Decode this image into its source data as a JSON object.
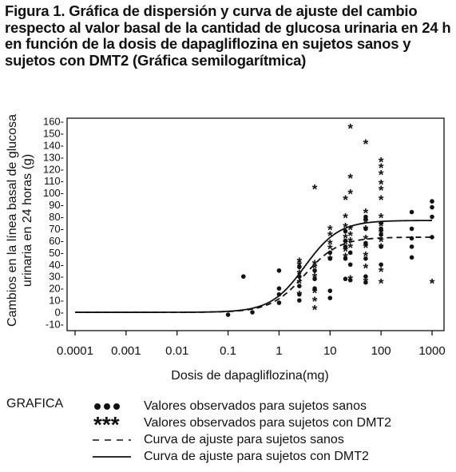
{
  "title": "Figura 1. Gráfica de dispersión y curva de ajuste del cambio respecto al valor basal de la cantidad de glucosa urinaria en 24 h en función de la dosis de dapagliflozina en sujetos sanos y sujetos con DMT2 (Gráfica semilogarítmica)",
  "legend": {
    "title": "GRAFICA",
    "items": [
      {
        "symbol": "●●●",
        "label": "Valores observados para sujetos sanos"
      },
      {
        "symbol": "***",
        "label": "Valores observados para sujetos con DMT2"
      },
      {
        "symbol": "dashed-line",
        "label": "Curva de ajuste para sujetos sanos"
      },
      {
        "symbol": "solid-line",
        "label": "Curva de ajuste para sujetos con DMT2"
      }
    ]
  },
  "chart_data": {
    "type": "scatter",
    "xscale": "log",
    "xlabel": "Dosis de dapagliflozina(mg)",
    "ylabel": "Cambios en la línea basal de glucosa urinaria en 24 horas (g)",
    "xlim": [
      0.0001,
      1000
    ],
    "ylim": [
      -10,
      160
    ],
    "xticks": [
      0.0001,
      0.001,
      0.01,
      0.1,
      1,
      10,
      100,
      1000
    ],
    "xtick_labels": [
      "0.0001",
      "0.001",
      "0.01",
      "0.1",
      "1",
      "10",
      "100",
      "1000"
    ],
    "yticks": [
      -10,
      0,
      10,
      20,
      30,
      40,
      50,
      60,
      70,
      80,
      90,
      100,
      110,
      120,
      130,
      140,
      150,
      160
    ],
    "ytick_labels": [
      "-10-",
      "0-",
      "10-",
      "20-",
      "30-",
      "40-",
      "50-",
      "60-",
      "70-",
      "80-",
      "90-",
      "100-",
      "110-",
      "120-",
      "130-",
      "140-",
      "150-",
      "160-"
    ],
    "series": [
      {
        "name": "Valores observados para sujetos sanos",
        "marker": "dot",
        "points": [
          [
            0.1,
            -2
          ],
          [
            0.2,
            30
          ],
          [
            0.3,
            0
          ],
          [
            1,
            8
          ],
          [
            1,
            15
          ],
          [
            1,
            20
          ],
          [
            1,
            35
          ],
          [
            2.5,
            10
          ],
          [
            2.5,
            15
          ],
          [
            2.5,
            22
          ],
          [
            2.5,
            30
          ],
          [
            2.5,
            38
          ],
          [
            5,
            20
          ],
          [
            5,
            28
          ],
          [
            5,
            35
          ],
          [
            10,
            12
          ],
          [
            10,
            18
          ],
          [
            10,
            45
          ],
          [
            10,
            50
          ],
          [
            20,
            28
          ],
          [
            20,
            45
          ],
          [
            20,
            55
          ],
          [
            20,
            60
          ],
          [
            20,
            68
          ],
          [
            25,
            27
          ],
          [
            25,
            40
          ],
          [
            25,
            50
          ],
          [
            50,
            25
          ],
          [
            50,
            30
          ],
          [
            50,
            45
          ],
          [
            50,
            58
          ],
          [
            50,
            70
          ],
          [
            50,
            78
          ],
          [
            50,
            80
          ],
          [
            100,
            40
          ],
          [
            100,
            55
          ],
          [
            100,
            65
          ],
          [
            100,
            70
          ],
          [
            100,
            75
          ],
          [
            400,
            46
          ],
          [
            400,
            55
          ],
          [
            400,
            62
          ],
          [
            400,
            70
          ],
          [
            400,
            84
          ],
          [
            1000,
            63
          ],
          [
            1000,
            80
          ],
          [
            1000,
            88
          ],
          [
            1000,
            93
          ]
        ]
      },
      {
        "name": "Valores observados para sujetos con DMT2",
        "marker": "asterisk",
        "points": [
          [
            2.5,
            15
          ],
          [
            2.5,
            25
          ],
          [
            2.5,
            33
          ],
          [
            2.5,
            40
          ],
          [
            2.5,
            43
          ],
          [
            5,
            3
          ],
          [
            5,
            10
          ],
          [
            5,
            17
          ],
          [
            5,
            30
          ],
          [
            5,
            38
          ],
          [
            5,
            41
          ],
          [
            5,
            104
          ],
          [
            10,
            45
          ],
          [
            10,
            54
          ],
          [
            10,
            58
          ],
          [
            10,
            65
          ],
          [
            10,
            70
          ],
          [
            20,
            47
          ],
          [
            20,
            52
          ],
          [
            20,
            58
          ],
          [
            20,
            63
          ],
          [
            20,
            72
          ],
          [
            20,
            80
          ],
          [
            20,
            95
          ],
          [
            25,
            28
          ],
          [
            25,
            55
          ],
          [
            25,
            60
          ],
          [
            25,
            65
          ],
          [
            25,
            70
          ],
          [
            25,
            100
          ],
          [
            25,
            113
          ],
          [
            25,
            155
          ],
          [
            50,
            26
          ],
          [
            50,
            38
          ],
          [
            50,
            48
          ],
          [
            50,
            55
          ],
          [
            50,
            62
          ],
          [
            50,
            70
          ],
          [
            50,
            76
          ],
          [
            50,
            84
          ],
          [
            50,
            142
          ],
          [
            100,
            25
          ],
          [
            100,
            35
          ],
          [
            100,
            55
          ],
          [
            100,
            60
          ],
          [
            100,
            67
          ],
          [
            100,
            73
          ],
          [
            100,
            80
          ],
          [
            100,
            95
          ],
          [
            100,
            103
          ],
          [
            100,
            108
          ],
          [
            100,
            116
          ],
          [
            100,
            122
          ],
          [
            100,
            127
          ],
          [
            1000,
            25
          ]
        ]
      },
      {
        "name": "Curva de ajuste para sujetos sanos",
        "marker": "dashed-line",
        "emax": 63,
        "ed50": 3.2,
        "hill": 1.3
      },
      {
        "name": "Curva de ajuste para sujetos con DMT2",
        "marker": "solid-line",
        "emax": 77,
        "ed50": 3.2,
        "hill": 1.3
      }
    ],
    "grid": false
  }
}
